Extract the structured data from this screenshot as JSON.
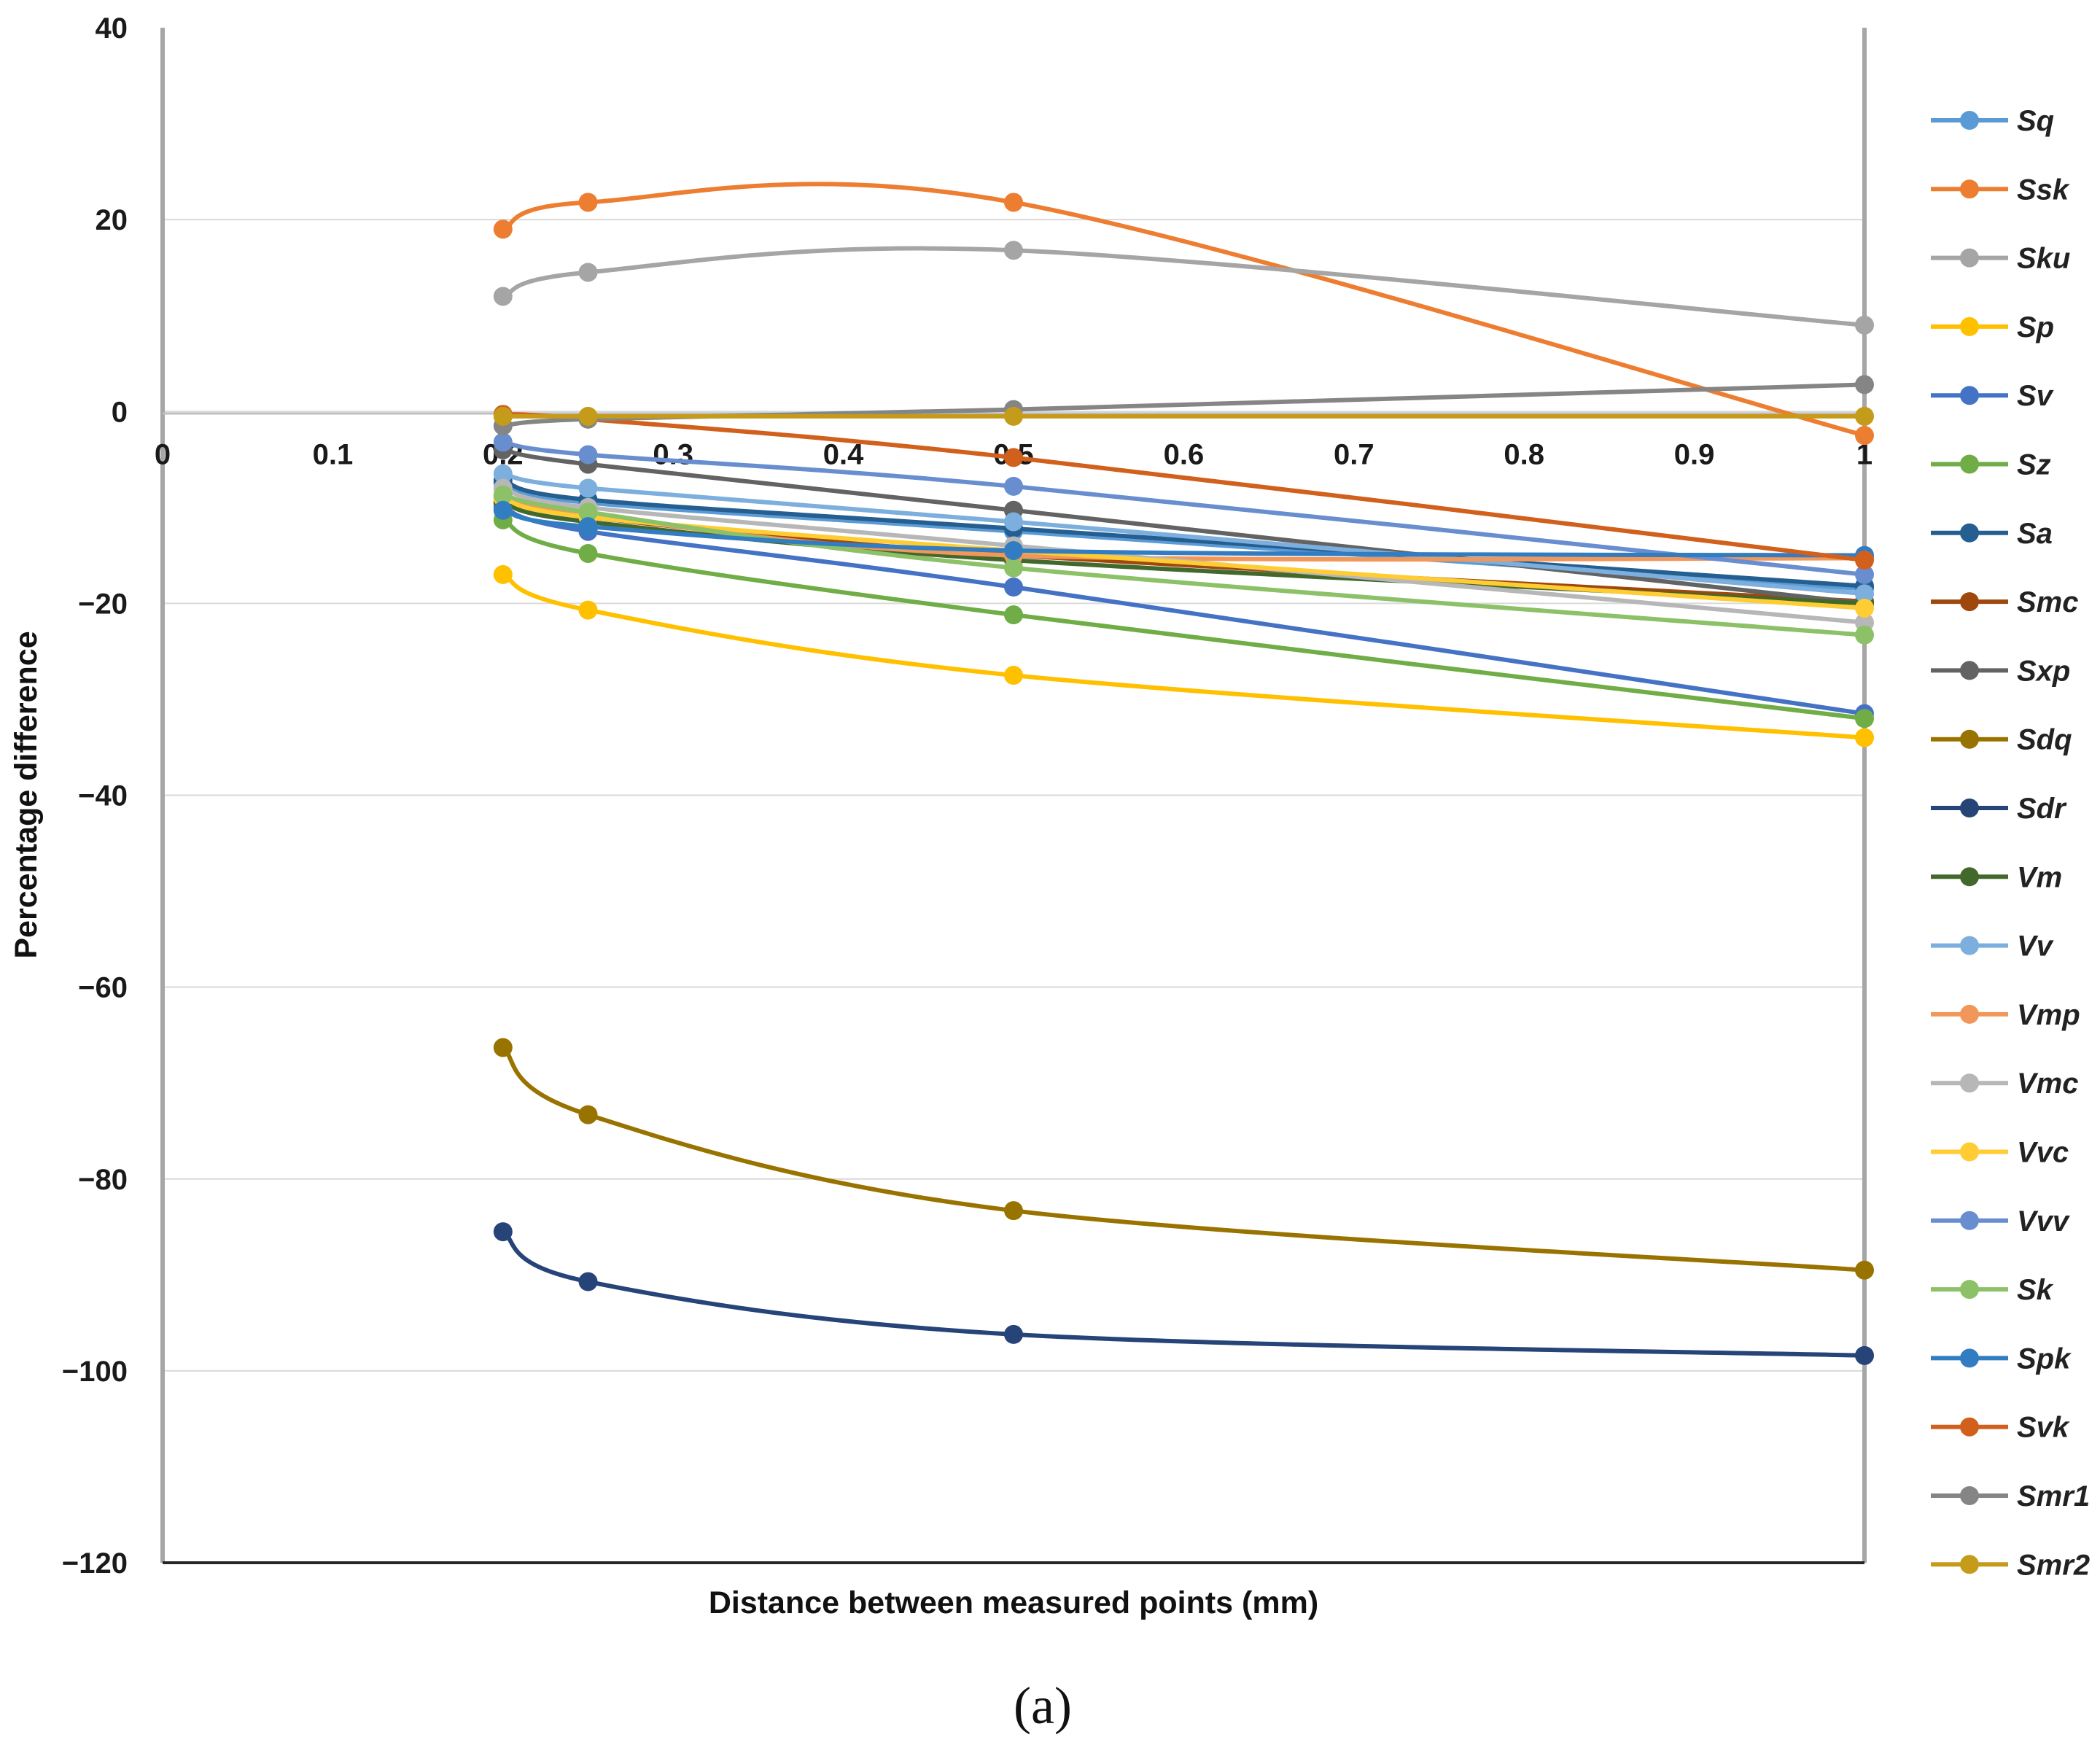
{
  "chart_data": {
    "type": "line",
    "title": "",
    "xlabel": "Distance between measured points  (mm)",
    "ylabel": "Percentage difference",
    "caption": "(a)",
    "xlim": [
      0,
      1
    ],
    "ylim": [
      -120,
      40
    ],
    "x_ticks": [
      "0",
      "0.1",
      "0.2",
      "0.3",
      "0.4",
      "0.5",
      "0.6",
      "0.7",
      "0.8",
      "0.9",
      "1"
    ],
    "y_ticks": [
      "40",
      "20",
      "0",
      "−20",
      "−40",
      "−60",
      "−80",
      "−100",
      "−120"
    ],
    "grid": "horizontal",
    "legend_position": "right",
    "x": [
      0.2,
      0.25,
      0.5,
      1
    ],
    "series": [
      {
        "name": "Sq",
        "color": "#5B9BD5",
        "values": [
          -7.5,
          -9.5,
          -12.5,
          -18.5
        ]
      },
      {
        "name": "Ssk",
        "color": "#ED7D31",
        "values": [
          19,
          21.8,
          21.8,
          -2.5
        ]
      },
      {
        "name": "Sku",
        "color": "#A5A5A5",
        "values": [
          12,
          14.5,
          16.8,
          9
        ]
      },
      {
        "name": "Sp",
        "color": "#FFC000",
        "values": [
          -17,
          -20.7,
          -27.5,
          -34
        ]
      },
      {
        "name": "Sv",
        "color": "#4472C4",
        "values": [
          -10,
          -12.5,
          -18.3,
          -31.5
        ]
      },
      {
        "name": "Sz",
        "color": "#70AD47",
        "values": [
          -11.3,
          -14.8,
          -21.2,
          -32
        ]
      },
      {
        "name": "Sa",
        "color": "#255E91",
        "values": [
          -7.2,
          -9.2,
          -12.2,
          -18.2
        ]
      },
      {
        "name": "Smc",
        "color": "#9E480E",
        "values": [
          -9,
          -11,
          -15,
          -19.8
        ]
      },
      {
        "name": "Sxp",
        "color": "#636363",
        "values": [
          -4,
          -5.5,
          -10.3,
          -20
        ]
      },
      {
        "name": "Sdq",
        "color": "#997300",
        "values": [
          -66.3,
          -73.3,
          -83.3,
          -89.5
        ]
      },
      {
        "name": "Sdr",
        "color": "#264478",
        "values": [
          -85.5,
          -90.7,
          -96.2,
          -98.4
        ]
      },
      {
        "name": "Vm",
        "color": "#43682B",
        "values": [
          -9.5,
          -11.5,
          -15.5,
          -20
        ]
      },
      {
        "name": "Vv",
        "color": "#7CAFDD",
        "values": [
          -6.5,
          -8,
          -11.5,
          -19
        ]
      },
      {
        "name": "Vmp",
        "color": "#F1975A",
        "values": [
          -9,
          -10.8,
          -15,
          -15.3
        ]
      },
      {
        "name": "Vmc",
        "color": "#B7B7B7",
        "values": [
          -8,
          -10,
          -14,
          -22
        ]
      },
      {
        "name": "Vvc",
        "color": "#FFCD33",
        "values": [
          -9,
          -11,
          -14.5,
          -20.5
        ]
      },
      {
        "name": "Vvv",
        "color": "#698ED0",
        "values": [
          -3.2,
          -4.5,
          -7.8,
          -17
        ]
      },
      {
        "name": "Sk",
        "color": "#8CC168",
        "values": [
          -8.7,
          -10.5,
          -16.3,
          -23.3
        ]
      },
      {
        "name": "Spk",
        "color": "#327DC2",
        "values": [
          -10.3,
          -12,
          -14.5,
          -15
        ]
      },
      {
        "name": "Svk",
        "color": "#D2601D",
        "values": [
          -0.3,
          -0.8,
          -4.8,
          -15.5
        ]
      },
      {
        "name": "Smr1",
        "color": "#858585",
        "values": [
          -1.5,
          -0.8,
          0.2,
          2.8
        ]
      },
      {
        "name": "Smr2",
        "color": "#C59B1A",
        "values": [
          -0.5,
          -0.5,
          -0.5,
          -0.5
        ]
      }
    ]
  }
}
